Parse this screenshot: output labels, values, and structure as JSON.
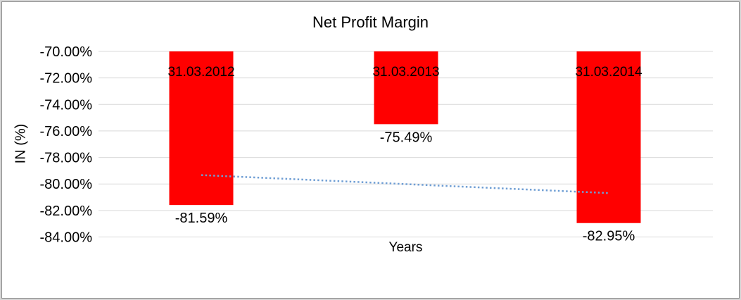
{
  "chart_data": {
    "type": "bar",
    "title": "Net Profit Margin",
    "xlabel": "Years",
    "ylabel": "IN (%)",
    "categories": [
      "31.03.2012",
      "31.03.2013",
      "31.03.2014"
    ],
    "values": [
      -81.59,
      -75.49,
      -82.95
    ],
    "value_labels": [
      "-81.59%",
      "-75.49%",
      "-82.95%"
    ],
    "ylim": [
      -84,
      -70
    ],
    "yticks": [
      {
        "value": -70,
        "label": "-70.00%"
      },
      {
        "value": -72,
        "label": "-72.00%"
      },
      {
        "value": -74,
        "label": "-74.00%"
      },
      {
        "value": -76,
        "label": "-76.00%"
      },
      {
        "value": -78,
        "label": "-78.00%"
      },
      {
        "value": -80,
        "label": "-80.00%"
      },
      {
        "value": -82,
        "label": "-82.00%"
      },
      {
        "value": -84,
        "label": "-84.00%"
      }
    ],
    "grid": true,
    "legend": "none",
    "bar_color": "#ff0000",
    "gridline_color": "#d9d9d9",
    "text_color": "#000000",
    "trendline": {
      "type": "linear",
      "style": "dotted",
      "color": "#6f9ed4",
      "start_value": -79.33,
      "end_value": -80.69
    }
  }
}
